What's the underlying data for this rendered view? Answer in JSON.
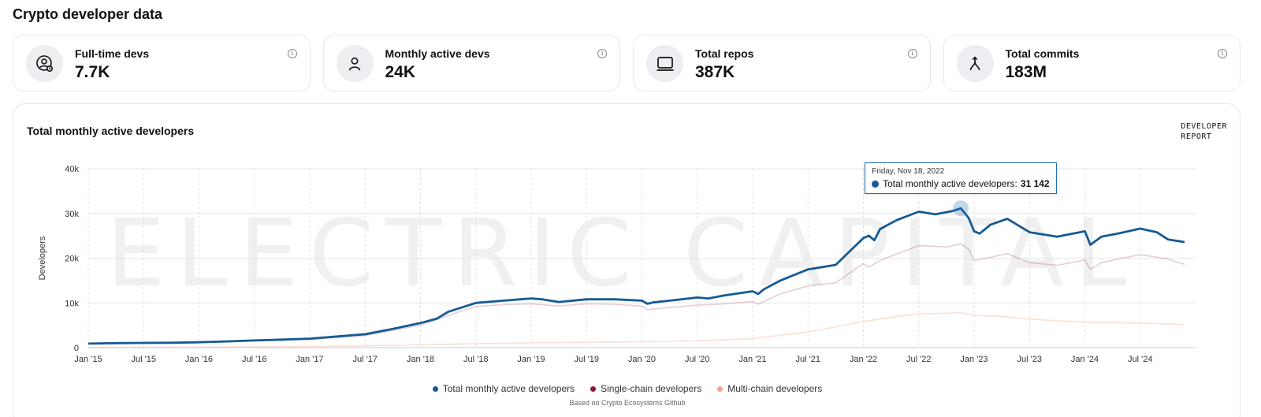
{
  "page": {
    "title": "Crypto developer data"
  },
  "stats": [
    {
      "label": "Full-time devs",
      "value": "7.7K",
      "icon": "fulltime-dev-icon"
    },
    {
      "label": "Monthly active devs",
      "value": "24K",
      "icon": "person-icon"
    },
    {
      "label": "Total repos",
      "value": "387K",
      "icon": "repo-icon"
    },
    {
      "label": "Total commits",
      "value": "183M",
      "icon": "commit-merge-icon"
    }
  ],
  "chart": {
    "title": "Total monthly active developers",
    "report_logo_line1": "DEVELOPER",
    "report_logo_line2": "REPORT",
    "watermark": "ELECTRIC CAPITAL",
    "source_note": "Based on Crypto Ecosystems Github",
    "tooltip": {
      "date": "Friday, Nov 18, 2022",
      "series": "Total monthly active developers:",
      "value": "31 142",
      "x": 2022.88,
      "y": 31142
    },
    "colors": {
      "total": "#155a94",
      "single": "#8b1a3a",
      "multi": "#f4a58a"
    }
  },
  "chart_data": {
    "type": "line",
    "title": "Total monthly active developers",
    "xlabel": "",
    "ylabel": "Developers",
    "xlim": [
      2015.0,
      2024.9
    ],
    "ylim": [
      0,
      40000
    ],
    "yticks": [
      0,
      10000,
      20000,
      30000,
      40000
    ],
    "ytick_labels": [
      "0",
      "10k",
      "20k",
      "30k",
      "40k"
    ],
    "xticks": [
      2015.0,
      2015.5,
      2016.0,
      2016.5,
      2017.0,
      2017.5,
      2018.0,
      2018.5,
      2019.0,
      2019.5,
      2020.0,
      2020.5,
      2021.0,
      2021.5,
      2022.0,
      2022.5,
      2023.0,
      2023.5,
      2024.0,
      2024.5
    ],
    "xtick_labels": [
      "Jan '15",
      "Jul '15",
      "Jan '16",
      "Jul '16",
      "Jan '17",
      "Jul '17",
      "Jan '18",
      "Jul '18",
      "Jan '19",
      "Jul '19",
      "Jan '20",
      "Jul '20",
      "Jan '21",
      "Jul '21",
      "Jan '22",
      "Jul '22",
      "Jan '23",
      "Jul '23",
      "Jan '24",
      "Jul '24"
    ],
    "grid": true,
    "legend_position": "bottom",
    "series": [
      {
        "name": "Total monthly active developers",
        "color": "#155a94",
        "points": [
          [
            2015.0,
            900
          ],
          [
            2015.25,
            1000
          ],
          [
            2015.5,
            1050
          ],
          [
            2015.75,
            1100
          ],
          [
            2016.0,
            1200
          ],
          [
            2016.25,
            1400
          ],
          [
            2016.5,
            1600
          ],
          [
            2016.75,
            1800
          ],
          [
            2017.0,
            2000
          ],
          [
            2017.25,
            2500
          ],
          [
            2017.5,
            3000
          ],
          [
            2017.75,
            4200
          ],
          [
            2018.0,
            5500
          ],
          [
            2018.15,
            6500
          ],
          [
            2018.25,
            8000
          ],
          [
            2018.5,
            10000
          ],
          [
            2018.75,
            10500
          ],
          [
            2019.0,
            11000
          ],
          [
            2019.1,
            10800
          ],
          [
            2019.25,
            10200
          ],
          [
            2019.5,
            10800
          ],
          [
            2019.75,
            10800
          ],
          [
            2020.0,
            10500
          ],
          [
            2020.05,
            9800
          ],
          [
            2020.1,
            10100
          ],
          [
            2020.25,
            10500
          ],
          [
            2020.5,
            11200
          ],
          [
            2020.6,
            11000
          ],
          [
            2020.75,
            11700
          ],
          [
            2021.0,
            12600
          ],
          [
            2021.05,
            12000
          ],
          [
            2021.1,
            13000
          ],
          [
            2021.25,
            15000
          ],
          [
            2021.5,
            17500
          ],
          [
            2021.75,
            18500
          ],
          [
            2022.0,
            24500
          ],
          [
            2022.05,
            25000
          ],
          [
            2022.1,
            24000
          ],
          [
            2022.15,
            26500
          ],
          [
            2022.3,
            28500
          ],
          [
            2022.5,
            30400
          ],
          [
            2022.65,
            29800
          ],
          [
            2022.8,
            30500
          ],
          [
            2022.88,
            31142
          ],
          [
            2022.95,
            29000
          ],
          [
            2023.0,
            26000
          ],
          [
            2023.05,
            25500
          ],
          [
            2023.15,
            27500
          ],
          [
            2023.3,
            28800
          ],
          [
            2023.5,
            25800
          ],
          [
            2023.75,
            24800
          ],
          [
            2024.0,
            26000
          ],
          [
            2024.05,
            23000
          ],
          [
            2024.15,
            24800
          ],
          [
            2024.3,
            25500
          ],
          [
            2024.5,
            26600
          ],
          [
            2024.65,
            25800
          ],
          [
            2024.75,
            24200
          ],
          [
            2024.9,
            23600
          ]
        ]
      },
      {
        "name": "Single-chain developers",
        "color": "#8b1a3a",
        "points": [
          [
            2015.0,
            850
          ],
          [
            2015.5,
            1000
          ],
          [
            2016.0,
            1150
          ],
          [
            2016.5,
            1500
          ],
          [
            2017.0,
            1850
          ],
          [
            2017.5,
            2700
          ],
          [
            2018.0,
            5000
          ],
          [
            2018.25,
            7200
          ],
          [
            2018.5,
            9200
          ],
          [
            2018.75,
            9600
          ],
          [
            2019.0,
            9800
          ],
          [
            2019.25,
            9300
          ],
          [
            2019.5,
            9800
          ],
          [
            2019.75,
            9700
          ],
          [
            2020.0,
            9300
          ],
          [
            2020.05,
            8500
          ],
          [
            2020.25,
            9000
          ],
          [
            2020.5,
            9500
          ],
          [
            2020.75,
            9800
          ],
          [
            2021.0,
            10300
          ],
          [
            2021.05,
            9700
          ],
          [
            2021.25,
            12000
          ],
          [
            2021.5,
            13800
          ],
          [
            2021.75,
            14500
          ],
          [
            2022.0,
            18800
          ],
          [
            2022.05,
            18000
          ],
          [
            2022.15,
            19500
          ],
          [
            2022.5,
            22800
          ],
          [
            2022.75,
            22500
          ],
          [
            2022.88,
            23200
          ],
          [
            2022.95,
            22000
          ],
          [
            2023.0,
            19400
          ],
          [
            2023.15,
            20200
          ],
          [
            2023.3,
            21000
          ],
          [
            2023.5,
            19000
          ],
          [
            2023.75,
            18400
          ],
          [
            2024.0,
            19600
          ],
          [
            2024.05,
            17500
          ],
          [
            2024.15,
            19000
          ],
          [
            2024.3,
            19800
          ],
          [
            2024.5,
            20800
          ],
          [
            2024.75,
            19800
          ],
          [
            2024.9,
            18600
          ]
        ]
      },
      {
        "name": "Multi-chain developers",
        "color": "#f4a58a",
        "points": [
          [
            2015.0,
            50
          ],
          [
            2015.5,
            80
          ],
          [
            2016.0,
            100
          ],
          [
            2016.5,
            150
          ],
          [
            2017.0,
            250
          ],
          [
            2017.5,
            400
          ],
          [
            2018.0,
            600
          ],
          [
            2018.5,
            900
          ],
          [
            2019.0,
            1100
          ],
          [
            2019.5,
            1200
          ],
          [
            2020.0,
            1300
          ],
          [
            2020.5,
            1500
          ],
          [
            2021.0,
            2000
          ],
          [
            2021.5,
            3500
          ],
          [
            2022.0,
            5800
          ],
          [
            2022.25,
            6800
          ],
          [
            2022.5,
            7500
          ],
          [
            2022.75,
            7700
          ],
          [
            2022.88,
            7800
          ],
          [
            2023.0,
            7200
          ],
          [
            2023.25,
            7000
          ],
          [
            2023.5,
            6400
          ],
          [
            2023.75,
            6000
          ],
          [
            2024.0,
            5700
          ],
          [
            2024.5,
            5500
          ],
          [
            2024.9,
            5200
          ]
        ]
      }
    ],
    "annotations": [
      {
        "text": "Friday, Nov 18, 2022 — Total monthly active developers: 31 142",
        "x": 2022.88,
        "y": 31142
      }
    ]
  },
  "legend": [
    {
      "label": "Total monthly active developers",
      "color": "#155a94"
    },
    {
      "label": "Single-chain developers",
      "color": "#8b1a3a"
    },
    {
      "label": "Multi-chain developers",
      "color": "#f4a58a"
    }
  ]
}
